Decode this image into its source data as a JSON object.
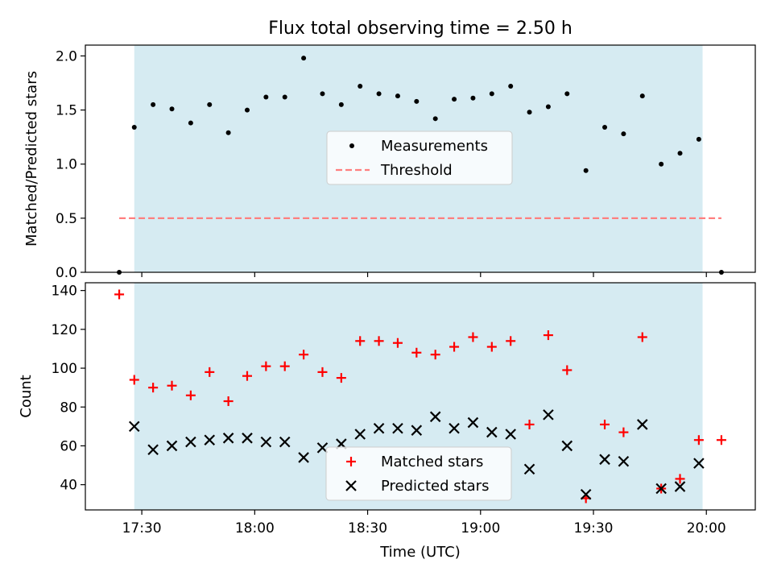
{
  "chart_data": [
    {
      "type": "scatter",
      "title": "Flux total observing time = 2.50 h",
      "xlabel": "",
      "ylabel": "Matched/Predicted stars",
      "xlim": [
        "17:15",
        "20:13"
      ],
      "ylim": [
        0,
        2.1
      ],
      "yticks": [
        "0.0",
        "0.5",
        "1.0",
        "1.5",
        "2.0"
      ],
      "shaded_span": [
        "17:28",
        "19:59"
      ],
      "grid": false,
      "legend_position": "center",
      "series": [
        {
          "name": "Measurements",
          "marker": "dot",
          "color": "#000000",
          "x": [
            "17:24",
            "17:28",
            "17:33",
            "17:38",
            "17:43",
            "17:48",
            "17:53",
            "17:58",
            "18:03",
            "18:08",
            "18:13",
            "18:18",
            "18:23",
            "18:28",
            "18:33",
            "18:38",
            "18:43",
            "18:48",
            "18:53",
            "18:58",
            "19:03",
            "19:08",
            "19:13",
            "19:18",
            "19:23",
            "19:28",
            "19:33",
            "19:38",
            "19:43",
            "19:48",
            "19:53",
            "19:58",
            "20:04"
          ],
          "y": [
            0.0,
            1.34,
            1.55,
            1.51,
            1.38,
            1.55,
            1.29,
            1.5,
            1.62,
            1.62,
            1.98,
            1.65,
            1.55,
            1.72,
            1.65,
            1.63,
            1.58,
            1.42,
            1.6,
            1.61,
            1.65,
            1.72,
            1.48,
            1.53,
            1.65,
            0.94,
            1.34,
            1.28,
            1.63,
            1.0,
            1.1,
            1.23,
            0.0
          ]
        },
        {
          "name": "Threshold",
          "style": "dashed",
          "color": "#ff7f7f",
          "x": [
            "17:24",
            "20:04"
          ],
          "y": [
            0.5,
            0.5
          ]
        }
      ]
    },
    {
      "type": "scatter",
      "title": "",
      "xlabel": "Time (UTC)",
      "ylabel": "Count",
      "xlim": [
        "17:15",
        "20:13"
      ],
      "ylim": [
        27,
        144
      ],
      "xticks": [
        "17:30",
        "18:00",
        "18:30",
        "19:00",
        "19:30",
        "20:00"
      ],
      "yticks": [
        "40",
        "60",
        "80",
        "100",
        "120",
        "140"
      ],
      "shaded_span": [
        "17:28",
        "19:59"
      ],
      "grid": false,
      "legend_position": "lower center",
      "series": [
        {
          "name": "Matched stars",
          "marker": "plus",
          "color": "#ff0000",
          "x": [
            "17:24",
            "17:28",
            "17:33",
            "17:38",
            "17:43",
            "17:48",
            "17:53",
            "17:58",
            "18:03",
            "18:08",
            "18:13",
            "18:18",
            "18:23",
            "18:28",
            "18:33",
            "18:38",
            "18:43",
            "18:48",
            "18:53",
            "18:58",
            "19:03",
            "19:08",
            "19:13",
            "19:18",
            "19:23",
            "19:28",
            "19:33",
            "19:38",
            "19:43",
            "19:48",
            "19:53",
            "19:58",
            "20:04"
          ],
          "y": [
            138,
            94,
            90,
            91,
            86,
            98,
            83,
            96,
            101,
            101,
            107,
            98,
            95,
            114,
            114,
            113,
            108,
            107,
            111,
            116,
            111,
            114,
            71,
            117,
            99,
            33,
            71,
            67,
            116,
            38,
            43,
            63,
            63
          ]
        },
        {
          "name": "Predicted stars",
          "marker": "x",
          "color": "#000000",
          "x": [
            "17:28",
            "17:33",
            "17:38",
            "17:43",
            "17:48",
            "17:53",
            "17:58",
            "18:03",
            "18:08",
            "18:13",
            "18:18",
            "18:23",
            "18:28",
            "18:33",
            "18:38",
            "18:43",
            "18:48",
            "18:53",
            "18:58",
            "19:03",
            "19:08",
            "19:13",
            "19:18",
            "19:23",
            "19:28",
            "19:33",
            "19:38",
            "19:43",
            "19:48",
            "19:53",
            "19:58"
          ],
          "y": [
            70,
            58,
            60,
            62,
            63,
            64,
            64,
            62,
            62,
            54,
            59,
            61,
            66,
            69,
            69,
            68,
            75,
            69,
            72,
            67,
            66,
            48,
            76,
            60,
            35,
            53,
            52,
            71,
            38,
            39,
            51
          ]
        }
      ]
    }
  ],
  "colors": {
    "span_fill": "#add8e6",
    "legend_face": "#ffffff"
  }
}
